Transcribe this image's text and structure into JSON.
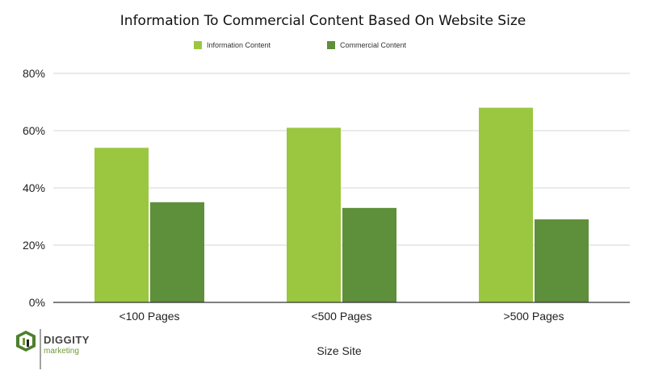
{
  "chart_data": {
    "type": "bar",
    "title": "Information To Commercial Content Based On Website Size",
    "xlabel": "Size Site",
    "ylabel": "",
    "categories": [
      "<100 Pages",
      "<500 Pages",
      ">500 Pages"
    ],
    "series": [
      {
        "name": "Information Content",
        "values": [
          54,
          61,
          68
        ],
        "color": "#9ac73f"
      },
      {
        "name": "Commercial Content",
        "values": [
          35,
          33,
          29
        ],
        "color": "#5e8f3a"
      }
    ],
    "ylim": [
      0,
      80
    ],
    "yticks": [
      0,
      20,
      40,
      60,
      80
    ],
    "ytick_labels": [
      "0%",
      "20%",
      "40%",
      "60%",
      "80%"
    ],
    "grid": true,
    "legend_position": "top"
  },
  "logo": {
    "line1": "DIGGITY",
    "line2": "marketing",
    "icon": "diggity-logo-icon"
  }
}
